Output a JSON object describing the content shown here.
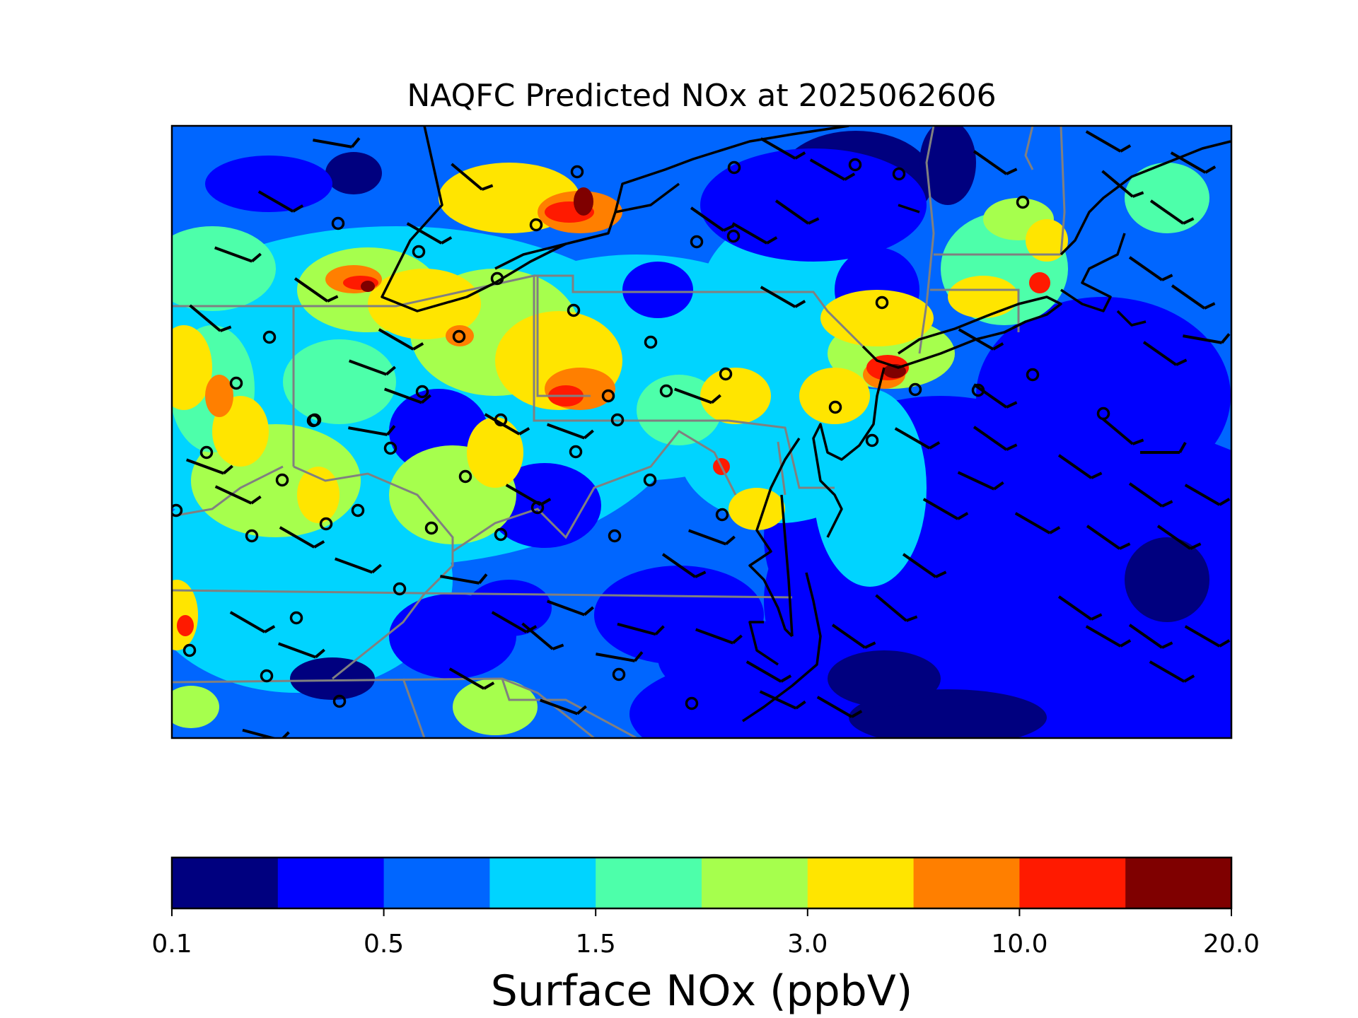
{
  "title": "NAQFC Predicted NOx at 2025062606",
  "map": {
    "region": "US Mid-Atlantic and Northeast",
    "background_color": "#0066ff",
    "state_border_color": "#808080",
    "coastline_color": "#000000",
    "wind_barb_color": "#000000",
    "site_marker": "open-circle"
  },
  "colorbar": {
    "label": "Surface NOx (ppbV)",
    "tick_labels": [
      "0.1",
      "0.5",
      "1.5",
      "3.0",
      "10.0",
      "20.0"
    ],
    "colors": [
      "#00007f",
      "#0000ff",
      "#0066ff",
      "#00d4ff",
      "#4dffaa",
      "#a6ff4d",
      "#ffe500",
      "#ff7f00",
      "#ff1a00",
      "#7f0000"
    ]
  }
}
